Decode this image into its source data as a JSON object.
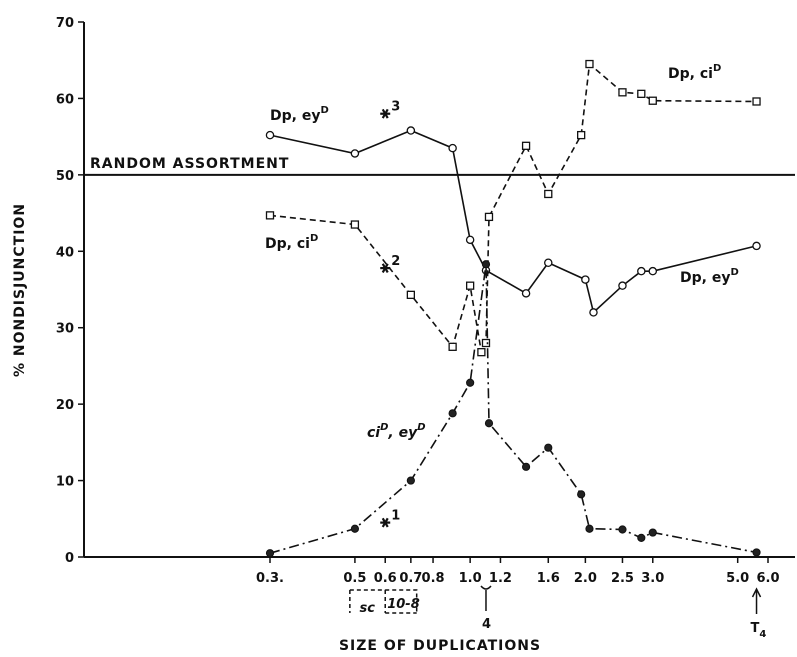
{
  "chart_data": {
    "type": "line",
    "title": "",
    "xlabel": "SIZE OF DUPLICATIONS",
    "ylabel": "% NONDISJUNCTION",
    "x_scale": "log",
    "xlim": [
      0.3,
      6.0
    ],
    "ylim": [
      0,
      70
    ],
    "x_ticks": [
      0.3,
      0.5,
      0.6,
      0.7,
      0.8,
      1.0,
      1.2,
      1.6,
      2.0,
      2.5,
      3.0,
      5.0,
      6.0
    ],
    "x_tick_labels": [
      "0.3.",
      "0.5",
      "0.6",
      "0.7",
      "0.8",
      "1.0",
      "1.2",
      "1.6",
      "2.0",
      "2.5",
      "3.0",
      "5.0",
      "6.0"
    ],
    "y_ticks": [
      0,
      10,
      20,
      30,
      40,
      50,
      60,
      70
    ],
    "y_tick_labels": [
      "0",
      "10",
      "20",
      "30",
      "40",
      "50",
      "60",
      "70"
    ],
    "grid": false,
    "reference_line": {
      "y": 50,
      "label": "RANDOM ASSORTMENT"
    },
    "series": [
      {
        "key": "eyD_solid",
        "label_text": "Dp, ey",
        "label_sup": "D",
        "style": "solid",
        "marker": "open-circle",
        "points": [
          [
            0.3,
            55.2
          ],
          [
            0.5,
            52.8
          ],
          [
            0.7,
            55.8
          ],
          [
            0.9,
            53.5
          ],
          [
            1.0,
            41.5
          ],
          [
            1.1,
            37.5
          ],
          [
            1.4,
            34.5
          ],
          [
            1.6,
            38.5
          ],
          [
            2.0,
            36.3
          ],
          [
            2.1,
            32.0
          ],
          [
            2.5,
            35.5
          ],
          [
            2.8,
            37.4
          ],
          [
            3.0,
            37.4
          ],
          [
            5.6,
            40.7
          ]
        ]
      },
      {
        "key": "ciD_dashed",
        "label_text": "Dp, ci",
        "label_sup": "D",
        "style": "dashed",
        "marker": "open-square",
        "points": [
          [
            0.3,
            44.7
          ],
          [
            0.5,
            43.5
          ],
          [
            0.7,
            34.3
          ],
          [
            0.9,
            27.5
          ],
          [
            1.0,
            35.5
          ],
          [
            1.07,
            26.8
          ],
          [
            1.1,
            28.0
          ],
          [
            1.12,
            44.5
          ],
          [
            1.4,
            53.8
          ],
          [
            1.6,
            47.5
          ],
          [
            1.95,
            55.2
          ],
          [
            2.05,
            64.5
          ],
          [
            2.5,
            60.8
          ],
          [
            2.8,
            60.6
          ],
          [
            3.0,
            59.7
          ],
          [
            5.6,
            59.6
          ]
        ]
      },
      {
        "key": "ciD_eyD_dashdot",
        "label_text": "ci",
        "label_mid": ", ey",
        "label_sup": "D",
        "style": "dashdot",
        "marker": "filled-circle",
        "points": [
          [
            0.3,
            0.5
          ],
          [
            0.5,
            3.7
          ],
          [
            0.7,
            10.0
          ],
          [
            0.9,
            18.8
          ],
          [
            1.0,
            22.8
          ],
          [
            1.1,
            38.3
          ],
          [
            1.12,
            17.5
          ],
          [
            1.4,
            11.8
          ],
          [
            1.6,
            14.3
          ],
          [
            1.95,
            8.2
          ],
          [
            2.05,
            3.7
          ],
          [
            2.5,
            3.6
          ],
          [
            2.8,
            2.5
          ],
          [
            3.0,
            3.2
          ],
          [
            5.6,
            0.6
          ]
        ]
      }
    ],
    "annotations": [
      {
        "label": "1",
        "x": 0.6,
        "y": 4.5
      },
      {
        "label": "2",
        "x": 0.6,
        "y": 37.8
      },
      {
        "label": "3",
        "x": 0.6,
        "y": 58.0
      }
    ],
    "below_axis_markers": [
      {
        "label": "sc",
        "x": 0.545
      },
      {
        "label": "10-8",
        "x": 0.67
      },
      {
        "label": "4",
        "x": 1.1
      },
      {
        "label": "T",
        "sub": "4",
        "x": 5.6
      }
    ]
  }
}
